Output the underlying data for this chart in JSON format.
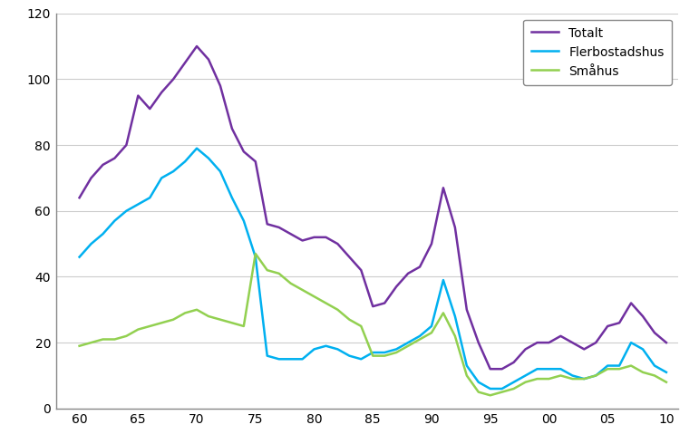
{
  "x": [
    1960,
    1961,
    1962,
    1963,
    1964,
    1965,
    1966,
    1967,
    1968,
    1969,
    1970,
    1971,
    1972,
    1973,
    1974,
    1975,
    1976,
    1977,
    1978,
    1979,
    1980,
    1981,
    1982,
    1983,
    1984,
    1985,
    1986,
    1987,
    1988,
    1989,
    1990,
    1991,
    1992,
    1993,
    1994,
    1995,
    1996,
    1997,
    1998,
    1999,
    2000,
    2001,
    2002,
    2003,
    2004,
    2005,
    2006,
    2007,
    2008,
    2009,
    2010
  ],
  "totalt": [
    64,
    70,
    74,
    76,
    80,
    95,
    91,
    96,
    100,
    105,
    110,
    106,
    98,
    85,
    78,
    75,
    56,
    55,
    53,
    51,
    52,
    52,
    50,
    46,
    42,
    31,
    32,
    37,
    41,
    43,
    50,
    67,
    55,
    30,
    20,
    12,
    12,
    14,
    18,
    20,
    20,
    22,
    20,
    18,
    20,
    25,
    26,
    32,
    28,
    23,
    20
  ],
  "flerbostadshus": [
    46,
    50,
    53,
    57,
    60,
    62,
    64,
    70,
    72,
    75,
    79,
    76,
    72,
    64,
    57,
    46,
    16,
    15,
    15,
    15,
    18,
    19,
    18,
    16,
    15,
    17,
    17,
    18,
    20,
    22,
    25,
    39,
    28,
    13,
    8,
    6,
    6,
    8,
    10,
    12,
    12,
    12,
    10,
    9,
    10,
    13,
    13,
    20,
    18,
    13,
    11
  ],
  "smahus": [
    19,
    20,
    21,
    21,
    22,
    24,
    25,
    26,
    27,
    29,
    30,
    28,
    27,
    26,
    25,
    47,
    42,
    41,
    38,
    36,
    34,
    32,
    30,
    27,
    25,
    16,
    16,
    17,
    19,
    21,
    23,
    29,
    22,
    10,
    5,
    4,
    5,
    6,
    8,
    9,
    9,
    10,
    9,
    9,
    10,
    12,
    12,
    13,
    11,
    10,
    8
  ],
  "totalt_color": "#7030a0",
  "flerbostadshus_color": "#00b0f0",
  "smahus_color": "#92d050",
  "ylim": [
    0,
    120
  ],
  "yticks": [
    0,
    20,
    40,
    60,
    80,
    100,
    120
  ],
  "xticks": [
    1960,
    1965,
    1970,
    1975,
    1980,
    1985,
    1990,
    1995,
    2000,
    2005,
    2010
  ],
  "xticklabels": [
    "60",
    "65",
    "70",
    "75",
    "80",
    "85",
    "90",
    "95",
    "00",
    "05",
    "10"
  ],
  "xlim": [
    1958,
    2011
  ],
  "legend_labels": [
    "Totalt",
    "Flerbostadshus",
    "Småhus"
  ],
  "background_color": "#ffffff",
  "grid_color": "#cccccc",
  "linewidth": 1.8
}
